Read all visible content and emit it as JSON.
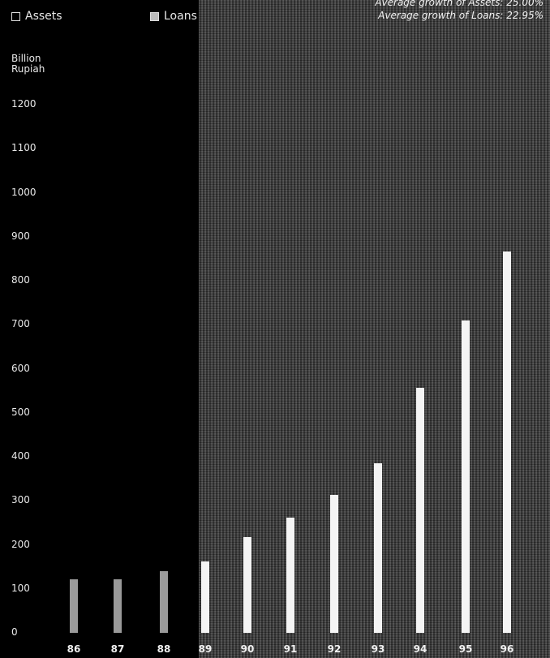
{
  "legend": {
    "assets_label": "Assets",
    "loans_label": "Loans"
  },
  "growth": {
    "assets_text": "Average growth of Assets: 25.00%",
    "loans_text": "Average growth of Loans: 22.95%"
  },
  "chart_data": {
    "type": "bar",
    "ylabel": "Billion Rupiah",
    "xlabel": "",
    "ylim": [
      0,
      1200
    ],
    "yticks": [
      0,
      100,
      200,
      300,
      400,
      500,
      600,
      700,
      800,
      900,
      1000,
      1100,
      1200
    ],
    "categories": [
      "86",
      "87",
      "88",
      "89",
      "90",
      "91",
      "92",
      "93",
      "94",
      "95",
      "96"
    ],
    "series": [
      {
        "name": "Loans",
        "values": [
          122,
          122,
          140,
          162,
          218,
          262,
          314,
          386,
          557,
          710,
          867
        ]
      }
    ],
    "legend_position": "top-left"
  }
}
